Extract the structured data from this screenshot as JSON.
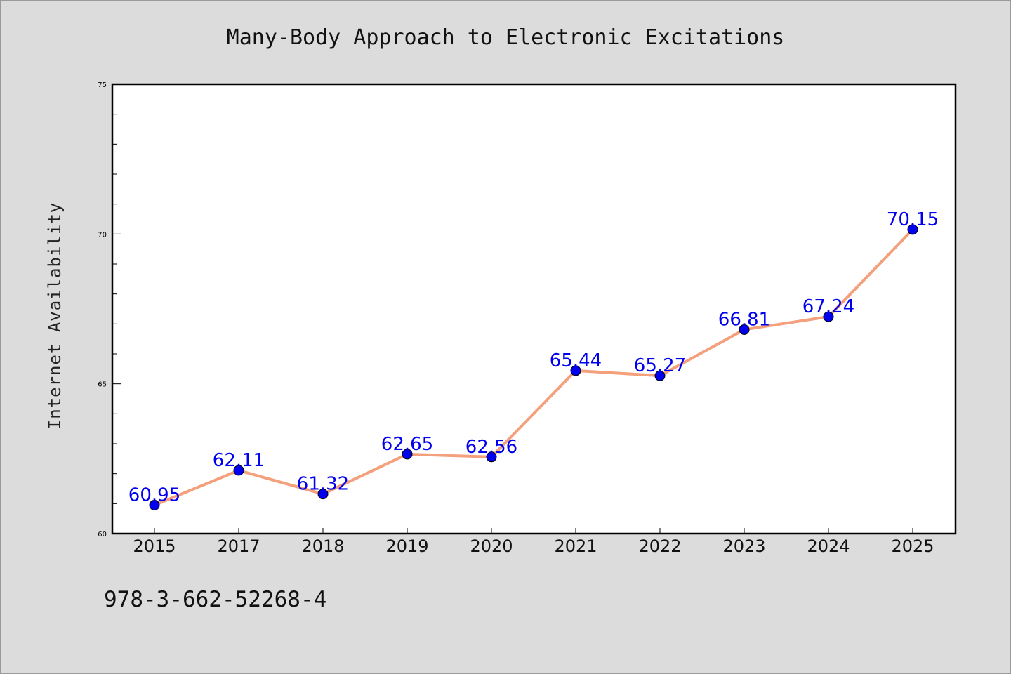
{
  "chart_data": {
    "type": "line",
    "title": "Many-Body Approach to Electronic Excitations",
    "xlabel": "",
    "ylabel": "Internet Availability",
    "categories": [
      "2015",
      "2017",
      "2018",
      "2019",
      "2020",
      "2021",
      "2022",
      "2023",
      "2024",
      "2025"
    ],
    "series": [
      {
        "values": [
          60.95,
          62.11,
          61.32,
          62.65,
          62.56,
          65.44,
          65.27,
          66.81,
          67.24,
          70.15
        ],
        "data_labels": [
          "60.95",
          "62.11",
          "61.32",
          "62.65",
          "62.56",
          "65.44",
          "65.27",
          "66.81",
          "67.24",
          "70.15"
        ],
        "line_color": "#f4a07c",
        "marker_color": "#0000ee"
      }
    ],
    "ylim": [
      60,
      75
    ],
    "yticks": [
      "60",
      "65",
      "70",
      "75"
    ],
    "grid": false,
    "legend": "none"
  },
  "footer": {
    "isbn": "978-3-662-52268-4"
  }
}
